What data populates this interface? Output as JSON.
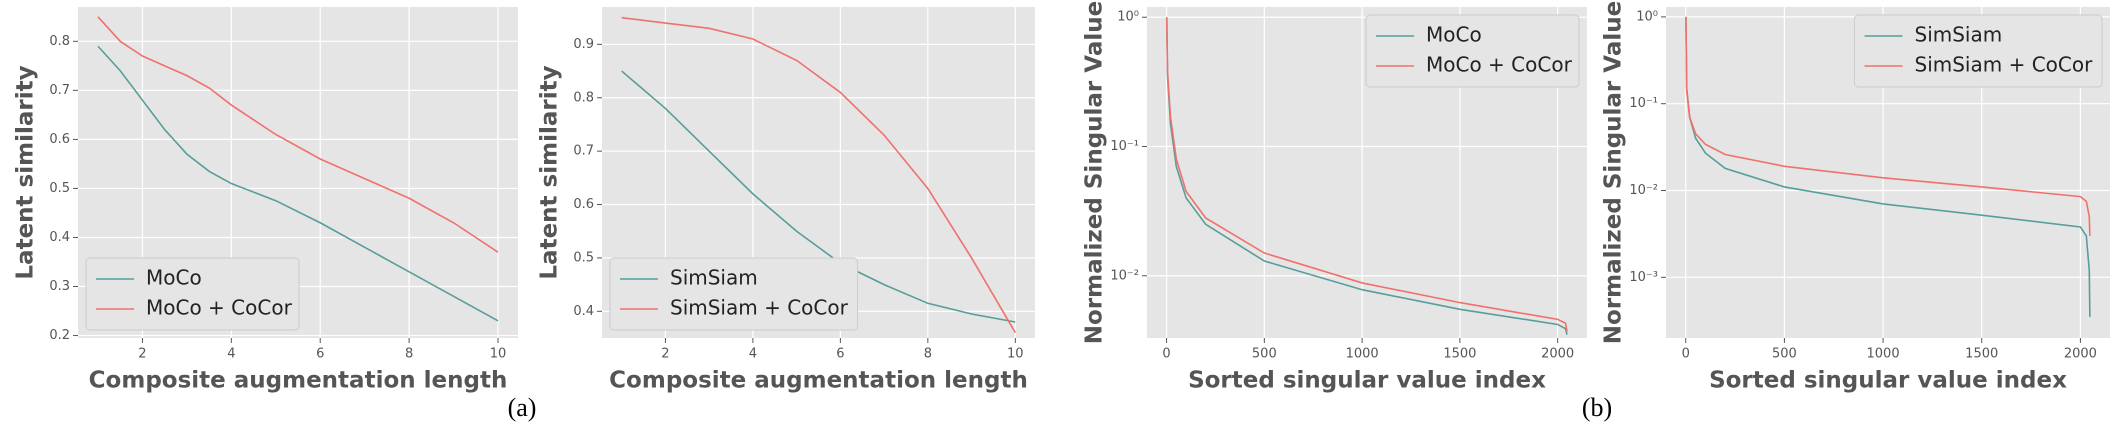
{
  "captions": [
    "(a)",
    "(b)"
  ],
  "chart_data": [
    {
      "type": "line",
      "xlabel": "Composite augmentation length",
      "ylabel": "Latent similarity",
      "x": [
        1,
        1.5,
        2,
        2.5,
        3,
        3.5,
        4,
        5,
        6,
        7,
        8,
        9,
        10
      ],
      "series": [
        {
          "name": "MoCo",
          "color": "#569e9a",
          "values": [
            0.79,
            0.74,
            0.68,
            0.62,
            0.57,
            0.535,
            0.51,
            0.475,
            0.43,
            0.38,
            0.33,
            0.28,
            0.23
          ]
        },
        {
          "name": "MoCo + CoCor",
          "color": "#f0716c",
          "values": [
            0.85,
            0.8,
            0.77,
            0.75,
            0.73,
            0.705,
            0.67,
            0.61,
            0.56,
            0.52,
            0.48,
            0.43,
            0.37
          ]
        }
      ],
      "xlim": [
        0.55,
        10.45
      ],
      "xticks": [
        2,
        4,
        6,
        8,
        10
      ],
      "ylim": [
        0.195,
        0.87
      ],
      "yticks": [
        0.2,
        0.3,
        0.4,
        0.5,
        0.6,
        0.7,
        0.8
      ],
      "log_y": false,
      "grid": true,
      "legend": "lower left"
    },
    {
      "type": "line",
      "xlabel": "Composite augmentation length",
      "ylabel": "Latent similarity",
      "x": [
        1,
        2,
        3,
        4,
        5,
        6,
        7,
        8,
        9,
        10
      ],
      "series": [
        {
          "name": "SimSiam",
          "color": "#569e9a",
          "values": [
            0.85,
            0.78,
            0.7,
            0.62,
            0.55,
            0.49,
            0.45,
            0.415,
            0.395,
            0.38
          ]
        },
        {
          "name": "SimSiam + CoCor",
          "color": "#f0716c",
          "values": [
            0.95,
            0.94,
            0.93,
            0.91,
            0.87,
            0.81,
            0.73,
            0.63,
            0.5,
            0.36
          ]
        }
      ],
      "xlim": [
        0.55,
        10.45
      ],
      "xticks": [
        2,
        4,
        6,
        8,
        10
      ],
      "ylim": [
        0.35,
        0.97
      ],
      "yticks": [
        0.4,
        0.5,
        0.6,
        0.7,
        0.8,
        0.9
      ],
      "log_y": false,
      "grid": true,
      "legend": "lower left"
    },
    {
      "type": "line",
      "xlabel": "Sorted singular value index",
      "ylabel": "Normalized Singular Value",
      "x": [
        1,
        5,
        20,
        50,
        100,
        200,
        500,
        1000,
        1500,
        2000,
        2040,
        2048
      ],
      "series": [
        {
          "name": "MoCo",
          "color": "#569e9a",
          "values": [
            1.0,
            0.35,
            0.15,
            0.07,
            0.04,
            0.025,
            0.013,
            0.0078,
            0.0055,
            0.0042,
            0.0039,
            0.0035
          ]
        },
        {
          "name": "MoCo + CoCor",
          "color": "#f0716c",
          "values": [
            1.0,
            0.38,
            0.17,
            0.08,
            0.045,
            0.028,
            0.015,
            0.0088,
            0.0062,
            0.0046,
            0.0043,
            0.0037
          ]
        }
      ],
      "xlim": [
        -100,
        2150
      ],
      "xticks": [
        0,
        500,
        1000,
        1500,
        2000
      ],
      "ylim": [
        0.0033,
        1.2
      ],
      "yticks": [
        {
          "value": 0.01,
          "label": "10⁻²"
        },
        {
          "value": 0.1,
          "label": "10⁻¹"
        },
        {
          "value": 1,
          "label": "10⁰"
        }
      ],
      "log_y": true,
      "grid": true,
      "legend": "upper right"
    },
    {
      "type": "line",
      "xlabel": "Sorted singular value index",
      "ylabel": "Normalized Singular Value",
      "x": [
        1,
        5,
        20,
        50,
        100,
        200,
        500,
        1000,
        1500,
        2000,
        2030,
        2045,
        2048
      ],
      "series": [
        {
          "name": "SimSiam",
          "color": "#569e9a",
          "values": [
            1.0,
            0.15,
            0.07,
            0.04,
            0.027,
            0.018,
            0.011,
            0.007,
            0.0052,
            0.0038,
            0.003,
            0.0012,
            0.00035
          ]
        },
        {
          "name": "SimSiam + CoCor",
          "color": "#f0716c",
          "values": [
            1.0,
            0.14,
            0.07,
            0.045,
            0.034,
            0.026,
            0.019,
            0.014,
            0.011,
            0.0085,
            0.0075,
            0.005,
            0.003
          ]
        }
      ],
      "xlim": [
        -100,
        2150
      ],
      "xticks": [
        0,
        500,
        1000,
        1500,
        2000
      ],
      "ylim": [
        0.0002,
        1.3
      ],
      "yticks": [
        {
          "value": 0.001,
          "label": "10⁻³"
        },
        {
          "value": 0.01,
          "label": "10⁻²"
        },
        {
          "value": 0.1,
          "label": "10⁻¹"
        },
        {
          "value": 1,
          "label": "10⁰"
        }
      ],
      "log_y": true,
      "grid": true,
      "legend": "upper right"
    }
  ]
}
